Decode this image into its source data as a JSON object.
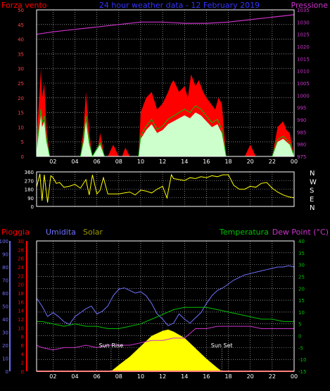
{
  "header": {
    "title": "24 hour weather data - 12 February 2019",
    "wind_label": "Forza vento",
    "pressure_label": "Pressione"
  },
  "colors": {
    "grid": "#d4d4d4",
    "axis": "#ffffff",
    "wind_avg": "#ffffff",
    "wind_gust": "#ff0000",
    "wind_mid": "#00c000",
    "wind_fill": "#ccffcc",
    "pressure": "#cc33cc",
    "direction": "#ffff00",
    "rain": "#ff0000",
    "humidity": "#7070ff",
    "solar": "#ffff00",
    "temperature": "#00c000",
    "dewpoint": "#cc33cc",
    "title": "#3333ff"
  },
  "x_axis": {
    "ticks": [
      "02",
      "04",
      "06",
      "08",
      "10",
      "12",
      "14",
      "16",
      "18",
      "20",
      "22",
      "00"
    ]
  },
  "chart_data": [
    {
      "id": "wind-pressure",
      "type": "line",
      "left_axis": {
        "label": "Forza vento",
        "range": [
          0,
          50
        ],
        "ticks": [
          0,
          5,
          10,
          15,
          20,
          25,
          30,
          35,
          40,
          45,
          50
        ]
      },
      "right_axis": {
        "label": "Pressione",
        "range": [
          975,
          1035
        ],
        "ticks": [
          975,
          980,
          985,
          990,
          995,
          1000,
          1005,
          1010,
          1015,
          1020,
          1025,
          1030,
          1035
        ]
      },
      "x_range": [
        0.5,
        24
      ],
      "series": [
        {
          "key": "gust",
          "x": [
            0.5,
            0.9,
            1.0,
            1.2,
            1.4,
            1.7,
            1.9,
            2.4,
            3.0,
            3.3,
            3.5,
            3.8,
            4.0,
            4.5,
            4.8,
            5.0,
            5.3,
            5.6,
            6.0,
            6.3,
            6.7,
            7.0,
            7.5,
            8.0,
            8.3,
            8.6,
            9.0,
            9.5,
            9.8,
            10.0,
            10.5,
            11.0,
            11.5,
            12.0,
            12.5,
            12.8,
            13.0,
            13.5,
            14.0,
            14.3,
            14.6,
            15.0,
            15.3,
            15.7,
            16.0,
            16.4,
            16.8,
            17.1,
            17.4,
            17.8,
            18.0,
            18.5,
            19.0,
            19.5,
            20.0,
            20.5,
            21.0,
            21.5,
            22.0,
            22.5,
            23.0,
            23.3,
            23.6,
            24.0
          ],
          "values": [
            5,
            30,
            20,
            25,
            10,
            0,
            0,
            0,
            0,
            0,
            0,
            0,
            0,
            0,
            10,
            22,
            8,
            0,
            0,
            8,
            0,
            0,
            4,
            0,
            0,
            3,
            0,
            0,
            0,
            15,
            20,
            22,
            16,
            18,
            22,
            25,
            26,
            22,
            24,
            20,
            28,
            24,
            26,
            22,
            20,
            18,
            16,
            20,
            18,
            0,
            0,
            0,
            0,
            0,
            4,
            0,
            0,
            0,
            0,
            10,
            12,
            9,
            8,
            0
          ]
        },
        {
          "key": "avg",
          "x": [
            0.5,
            0.9,
            1.0,
            1.2,
            1.4,
            1.7,
            2.4,
            4.5,
            4.8,
            5.0,
            5.3,
            5.6,
            6.3,
            6.7,
            9.8,
            10.0,
            10.5,
            11.0,
            11.5,
            12.0,
            12.5,
            13.0,
            13.5,
            14.0,
            14.5,
            15.0,
            15.5,
            16.0,
            16.5,
            17.0,
            17.4,
            17.8,
            18.0,
            22.0,
            22.5,
            23.0,
            23.6,
            24.0
          ],
          "values": [
            2,
            14,
            10,
            12,
            5,
            0,
            0,
            0,
            5,
            12,
            4,
            0,
            4,
            0,
            0,
            6,
            9,
            11,
            8,
            9,
            11,
            12,
            13,
            14,
            13,
            15,
            14,
            12,
            10,
            11,
            8,
            0,
            0,
            0,
            5,
            6,
            4,
            0
          ],
          "note": "average"
        },
        {
          "key": "pressure",
          "x": [
            0.5,
            2,
            4,
            6,
            8,
            10,
            12,
            14,
            16,
            18,
            20,
            22,
            24
          ],
          "values": [
            1025,
            1026,
            1027,
            1028,
            1029,
            1030,
            1030,
            1029.5,
            1029.5,
            1030,
            1031,
            1032,
            1033
          ]
        }
      ]
    },
    {
      "id": "wind-direction",
      "type": "line",
      "left_axis": {
        "range": [
          0,
          360
        ],
        "ticks": [
          0,
          90,
          180,
          270,
          360
        ]
      },
      "right_axis": {
        "compass": [
          "N",
          "W",
          "S",
          "E",
          "N"
        ]
      },
      "x_range": [
        0.5,
        24
      ],
      "series": [
        {
          "key": "dir",
          "x": [
            0.5,
            0.8,
            1.0,
            1.2,
            1.5,
            1.8,
            2.0,
            2.3,
            2.6,
            3.0,
            3.5,
            4.0,
            4.5,
            5.0,
            5.3,
            5.6,
            6.0,
            6.3,
            6.6,
            7.0,
            7.5,
            8.0,
            8.5,
            9.0,
            9.5,
            10.0,
            10.5,
            11.0,
            11.5,
            12.0,
            12.4,
            12.8,
            13.0,
            13.5,
            14.0,
            14.5,
            15.0,
            15.5,
            16.0,
            16.5,
            17.0,
            17.5,
            18.0,
            18.5,
            19.0,
            19.5,
            20.0,
            20.5,
            21.0,
            21.5,
            22.0,
            22.5,
            23.0,
            23.5,
            24.0
          ],
          "values": [
            200,
            340,
            60,
            330,
            40,
            320,
            300,
            240,
            250,
            200,
            210,
            230,
            190,
            280,
            120,
            330,
            130,
            170,
            300,
            130,
            130,
            130,
            140,
            150,
            120,
            170,
            160,
            140,
            180,
            210,
            90,
            330,
            290,
            280,
            270,
            300,
            290,
            310,
            300,
            320,
            310,
            330,
            330,
            220,
            180,
            180,
            210,
            200,
            240,
            250,
            190,
            150,
            120,
            100,
            90
          ]
        }
      ]
    },
    {
      "id": "rain-humidity-solar-temperature",
      "type": "line",
      "axes": {
        "rain": {
          "label": "Pioggia",
          "range": [
            0,
            30
          ],
          "ticks": [
            0,
            2,
            4,
            6,
            8,
            10,
            12,
            14,
            16,
            18,
            20,
            22,
            24,
            26,
            28,
            30
          ]
        },
        "humidity": {
          "label": "Umidita",
          "range": [
            0,
            100
          ],
          "ticks": [
            0,
            10,
            20,
            30,
            40,
            50,
            60,
            70,
            80,
            90,
            100
          ]
        },
        "solar": {
          "label": "Solar"
        },
        "temperature": {
          "label": "Temperatura"
        },
        "dewpoint": {
          "label": "Dew Point (°C)",
          "range": [
            -15,
            40
          ],
          "ticks": [
            -15,
            -10,
            -5,
            0,
            5,
            10,
            15,
            20,
            25,
            30,
            35,
            40
          ]
        }
      },
      "x_range": [
        0.5,
        24
      ],
      "annotations": [
        {
          "text": "Sun Rise",
          "x": 7.3
        },
        {
          "text": "Sun Set",
          "x": 17.4
        }
      ],
      "series": [
        {
          "key": "humidity",
          "x": [
            0.5,
            1.0,
            1.5,
            2.0,
            2.5,
            3.0,
            3.5,
            4.0,
            4.5,
            5.0,
            5.5,
            6.0,
            6.5,
            7.0,
            7.5,
            8.0,
            8.5,
            9.0,
            9.5,
            10.0,
            10.5,
            11.0,
            11.5,
            12.0,
            12.5,
            13.0,
            13.5,
            14.0,
            14.5,
            15.0,
            15.5,
            16.0,
            16.5,
            17.0,
            17.5,
            18.0,
            18.5,
            19.0,
            19.5,
            20.0,
            20.5,
            21.0,
            21.5,
            22.0,
            22.5,
            23.0,
            23.5,
            24.0
          ],
          "values": [
            56,
            50,
            42,
            45,
            42,
            38,
            36,
            42,
            45,
            48,
            50,
            44,
            46,
            50,
            58,
            63,
            64,
            62,
            60,
            61,
            58,
            52,
            44,
            40,
            35,
            37,
            44,
            40,
            37,
            41,
            45,
            52,
            58,
            62,
            64,
            67,
            70,
            72,
            74,
            75,
            76,
            77,
            78,
            79,
            80,
            80,
            81,
            80
          ]
        },
        {
          "key": "temperature",
          "x": [
            0.5,
            1,
            2,
            3,
            4,
            5,
            6,
            7,
            8,
            9,
            10,
            11,
            12,
            13,
            14,
            15,
            16,
            17,
            18,
            19,
            20,
            21,
            22,
            23,
            24
          ],
          "values": [
            6,
            6,
            5,
            4,
            5,
            4,
            4,
            3,
            3,
            4,
            5,
            7,
            9,
            11,
            12,
            12,
            12,
            11,
            10,
            9,
            8,
            7,
            7,
            6,
            6
          ]
        },
        {
          "key": "dewpoint",
          "x": [
            0.5,
            1,
            2,
            3,
            4,
            5,
            6,
            7,
            8,
            9,
            10,
            11,
            12,
            13,
            14,
            15,
            16,
            17,
            18,
            19,
            20,
            21,
            22,
            23,
            24
          ],
          "values": [
            -4,
            -5,
            -6,
            -5,
            -5,
            -4,
            -5,
            -4,
            -4,
            -4,
            -3,
            -2,
            -2,
            -1,
            -1,
            3,
            3,
            4,
            4,
            4,
            4,
            3,
            3,
            3,
            3
          ]
        },
        {
          "key": "solar",
          "x": [
            7.3,
            8,
            9,
            10,
            11,
            12,
            12.5,
            13,
            14,
            15,
            16,
            17,
            17.4
          ],
          "values": [
            0,
            0.15,
            0.35,
            0.6,
            0.85,
            0.97,
            1.0,
            0.95,
            0.8,
            0.55,
            0.3,
            0.08,
            0
          ],
          "note": "relative"
        },
        {
          "key": "rain",
          "x": [
            0.5,
            24
          ],
          "values": [
            0,
            0
          ]
        }
      ]
    }
  ]
}
